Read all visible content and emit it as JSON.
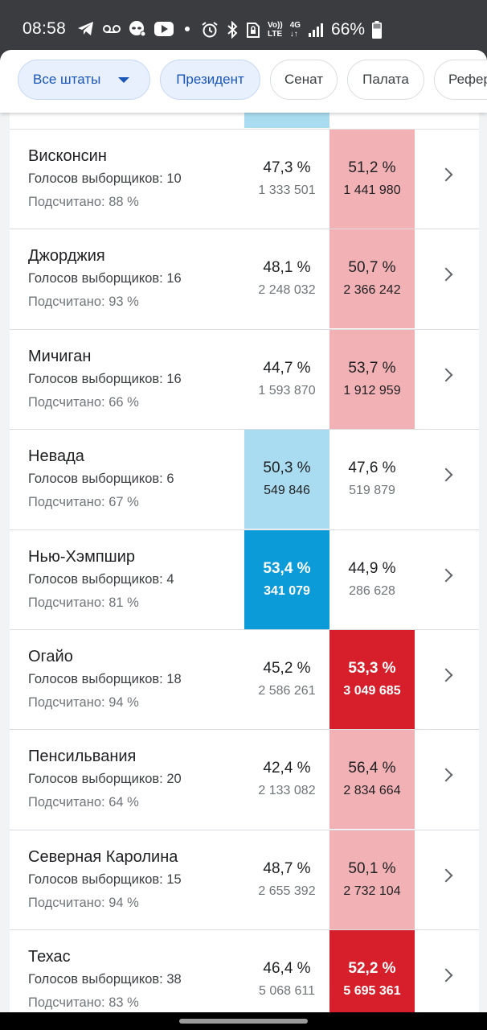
{
  "status_bar": {
    "time": "08:58",
    "net_label": "Vo)) LTE",
    "net_label_top": "Vo))",
    "net_label_bottom": "LTE",
    "net_4g_top": "4G",
    "net_4g_bottom": "↓↑",
    "battery": "66%",
    "icons": [
      "telegram-icon",
      "voicemail-icon",
      "alien-icon",
      "youtube-icon",
      "dot-icon",
      "alarm-icon",
      "bluetooth-icon",
      "sim-lock-icon",
      "signal-icon",
      "battery-icon"
    ]
  },
  "filters": {
    "chips": [
      {
        "label": "Все штаты",
        "active": true,
        "dropdown": true
      },
      {
        "label": "Президент",
        "active": true
      },
      {
        "label": "Сенат",
        "active": false
      },
      {
        "label": "Палата",
        "active": false
      },
      {
        "label": "Референдум",
        "active": false
      }
    ]
  },
  "labels": {
    "electoral_prefix": "Голосов выборщиков: ",
    "counted_prefix": "Подсчитано: "
  },
  "colors": {
    "dem_light": "#a9dcf0",
    "dem_dark": "#0b9bd9",
    "rep_light": "#f2b1b4",
    "rep_dark": "#d61f2a"
  },
  "states": [
    {
      "name": "Висконсин",
      "electoral_votes": "10",
      "counted": "88 %",
      "dem": {
        "pct": "47,3 %",
        "votes": "1 333 501"
      },
      "rep": {
        "pct": "51,2 %",
        "votes": "1 441 980"
      },
      "leader": "rep",
      "intensity": "light"
    },
    {
      "name": "Джорджия",
      "electoral_votes": "16",
      "counted": "93 %",
      "dem": {
        "pct": "48,1 %",
        "votes": "2 248 032"
      },
      "rep": {
        "pct": "50,7 %",
        "votes": "2 366 242"
      },
      "leader": "rep",
      "intensity": "light"
    },
    {
      "name": "Мичиган",
      "electoral_votes": "16",
      "counted": "66 %",
      "dem": {
        "pct": "44,7 %",
        "votes": "1 593 870"
      },
      "rep": {
        "pct": "53,7 %",
        "votes": "1 912 959"
      },
      "leader": "rep",
      "intensity": "light"
    },
    {
      "name": "Невада",
      "electoral_votes": "6",
      "counted": "67 %",
      "dem": {
        "pct": "50,3 %",
        "votes": "549 846"
      },
      "rep": {
        "pct": "47,6 %",
        "votes": "519 879"
      },
      "leader": "dem",
      "intensity": "light"
    },
    {
      "name": "Нью-Хэмпшир",
      "electoral_votes": "4",
      "counted": "81 %",
      "dem": {
        "pct": "53,4 %",
        "votes": "341 079"
      },
      "rep": {
        "pct": "44,9 %",
        "votes": "286 628"
      },
      "leader": "dem",
      "intensity": "dark"
    },
    {
      "name": "Огайо",
      "electoral_votes": "18",
      "counted": "94 %",
      "dem": {
        "pct": "45,2 %",
        "votes": "2 586 261"
      },
      "rep": {
        "pct": "53,3 %",
        "votes": "3 049 685"
      },
      "leader": "rep",
      "intensity": "dark"
    },
    {
      "name": "Пенсильвания",
      "electoral_votes": "20",
      "counted": "64 %",
      "dem": {
        "pct": "42,4 %",
        "votes": "2 133 082"
      },
      "rep": {
        "pct": "56,4 %",
        "votes": "2 834 664"
      },
      "leader": "rep",
      "intensity": "light"
    },
    {
      "name": "Северная Каролина",
      "electoral_votes": "15",
      "counted": "94 %",
      "dem": {
        "pct": "48,7 %",
        "votes": "2 655 392"
      },
      "rep": {
        "pct": "50,1 %",
        "votes": "2 732 104"
      },
      "leader": "rep",
      "intensity": "light"
    },
    {
      "name": "Техас",
      "electoral_votes": "38",
      "counted": "83 %",
      "dem": {
        "pct": "46,4 %",
        "votes": "5 068 611"
      },
      "rep": {
        "pct": "52,2 %",
        "votes": "5 695 361"
      },
      "leader": "rep",
      "intensity": "dark"
    }
  ]
}
